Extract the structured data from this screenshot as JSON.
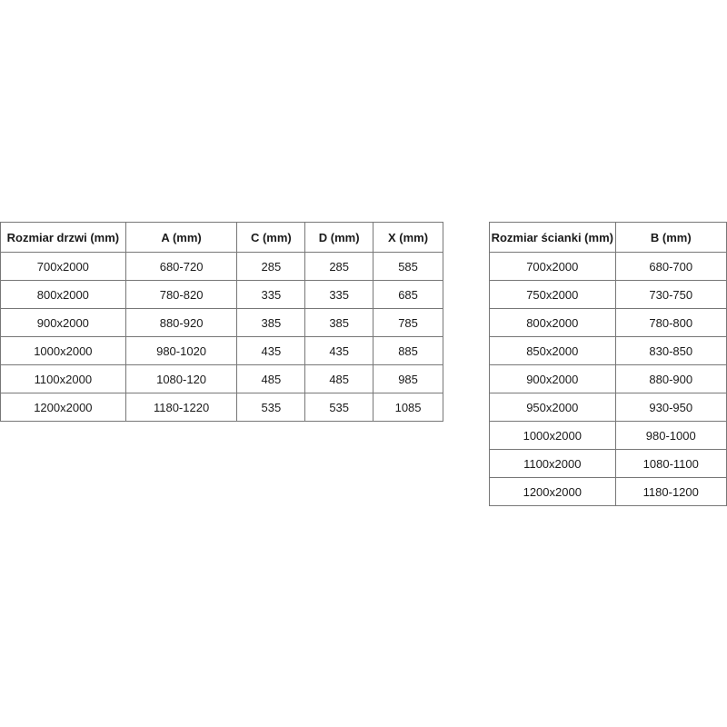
{
  "door_table": {
    "headers": [
      "Rozmiar drzwi (mm)",
      "A (mm)",
      "C (mm)",
      "D (mm)",
      "X (mm)"
    ],
    "rows": [
      [
        "700x2000",
        "680-720",
        "285",
        "285",
        "585"
      ],
      [
        "800x2000",
        "780-820",
        "335",
        "335",
        "685"
      ],
      [
        "900x2000",
        "880-920",
        "385",
        "385",
        "785"
      ],
      [
        "1000x2000",
        "980-1020",
        "435",
        "435",
        "885"
      ],
      [
        "1100x2000",
        "1080-120",
        "485",
        "485",
        "985"
      ],
      [
        "1200x2000",
        "1180-1220",
        "535",
        "535",
        "1085"
      ]
    ]
  },
  "wall_table": {
    "headers": [
      "Rozmiar ścianki (mm)",
      "B (mm)"
    ],
    "rows": [
      [
        "700x2000",
        "680-700"
      ],
      [
        "750x2000",
        "730-750"
      ],
      [
        "800x2000",
        "780-800"
      ],
      [
        "850x2000",
        "830-850"
      ],
      [
        "900x2000",
        "880-900"
      ],
      [
        "950x2000",
        "930-950"
      ],
      [
        "1000x2000",
        "980-1000"
      ],
      [
        "1100x2000",
        "1080-1100"
      ],
      [
        "1200x2000",
        "1180-1200"
      ]
    ]
  }
}
